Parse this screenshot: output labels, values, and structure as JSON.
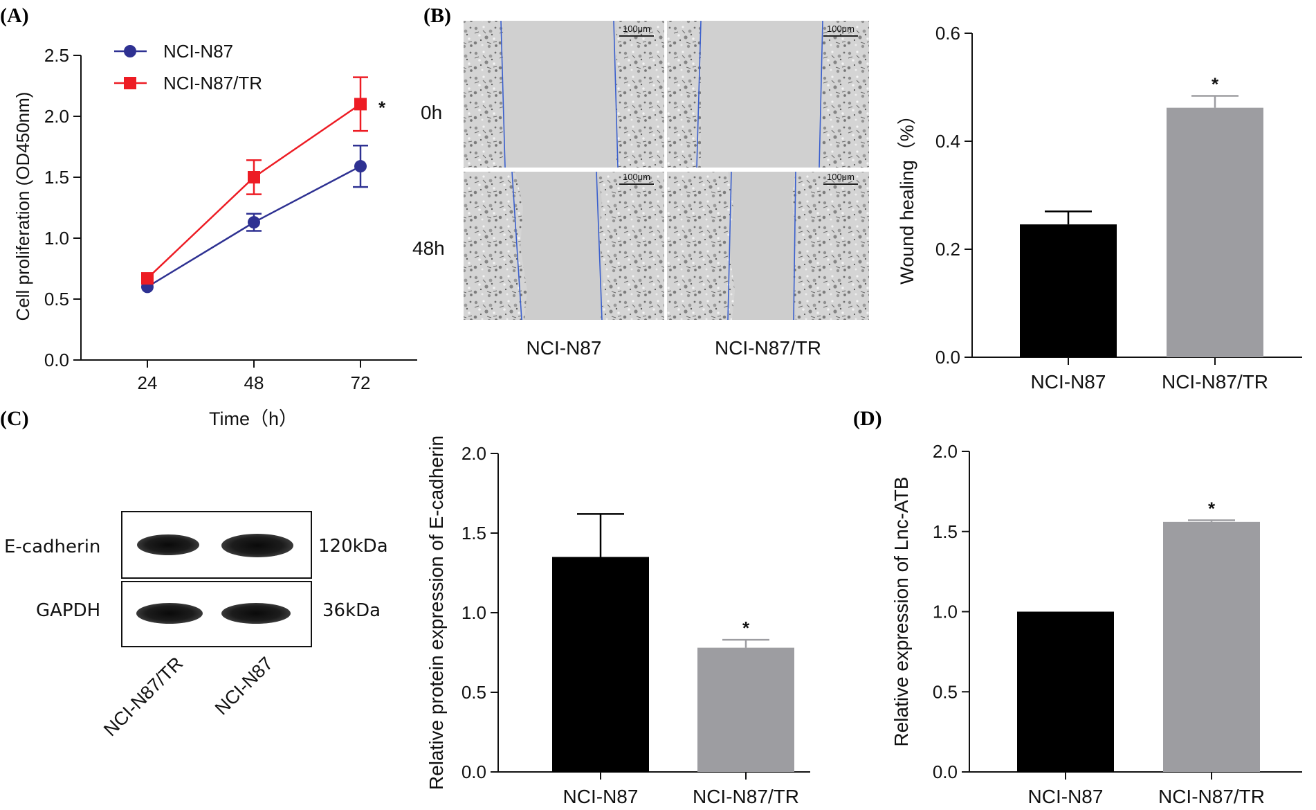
{
  "panels": {
    "A": "(A)",
    "B": "(B)",
    "C": "(C)",
    "D": "(D)"
  },
  "chart_data": [
    {
      "id": "A",
      "type": "line",
      "xlabel": "Time（h）",
      "ylabel": "Cell proliferation (OD450nm)",
      "x": [
        24,
        48,
        72
      ],
      "x_ticklabels": [
        "24",
        "48",
        "72"
      ],
      "ylim": [
        0,
        2.5
      ],
      "y_ticks": [
        0.0,
        0.5,
        1.0,
        1.5,
        2.0,
        2.5
      ],
      "y_ticklabels": [
        "0.0",
        "0.5",
        "1.0",
        "1.5",
        "2.0",
        "2.5"
      ],
      "legend_position": "top-left",
      "series": [
        {
          "name": "NCI-N87",
          "values": [
            0.6,
            1.13,
            1.59
          ],
          "errors": [
            0.0,
            0.07,
            0.17
          ],
          "color": "#2e3192",
          "marker": "circle"
        },
        {
          "name": "NCI-N87/TR",
          "values": [
            0.67,
            1.5,
            2.1
          ],
          "errors": [
            0.0,
            0.14,
            0.22
          ],
          "color": "#ed1c24",
          "marker": "square"
        }
      ],
      "annotations": [
        {
          "text": "*",
          "x": 72,
          "y": 2.1
        }
      ]
    },
    {
      "id": "B-bar",
      "type": "bar",
      "categories": [
        "NCI-N87",
        "NCI-N87/TR"
      ],
      "values": [
        0.246,
        0.462
      ],
      "errors": [
        0.024,
        0.022
      ],
      "colors": [
        "#000000",
        "#9d9da1"
      ],
      "ylabel": "Wound healing（%）",
      "ylim": [
        0,
        0.6
      ],
      "y_ticks": [
        0.0,
        0.2,
        0.4,
        0.6
      ],
      "y_ticklabels": [
        "0.0",
        "0.2",
        "0.4",
        "0.6"
      ],
      "sig": [
        "",
        "*"
      ]
    },
    {
      "id": "C-bar",
      "type": "bar",
      "categories": [
        "NCI-N87",
        "NCI-N87/TR"
      ],
      "values": [
        1.35,
        0.78
      ],
      "errors": [
        0.27,
        0.05
      ],
      "colors": [
        "#000000",
        "#9d9da1"
      ],
      "ylabel": "Relative protein expression of E-cadherin",
      "ylim": [
        0,
        2.0
      ],
      "y_ticks": [
        0.0,
        0.5,
        1.0,
        1.5,
        2.0
      ],
      "y_ticklabels": [
        "0.0",
        "0.5",
        "1.0",
        "1.5",
        "2.0"
      ],
      "sig": [
        "",
        "*"
      ]
    },
    {
      "id": "D",
      "type": "bar",
      "categories": [
        "NCI-N87",
        "NCI-N87/TR"
      ],
      "values": [
        1.0,
        1.56
      ],
      "errors": [
        0.0,
        0.01
      ],
      "colors": [
        "#000000",
        "#9d9da1"
      ],
      "ylabel": "Relative expression of Lnc-ATB",
      "ylim": [
        0,
        2.0
      ],
      "y_ticks": [
        0.0,
        0.5,
        1.0,
        1.5,
        2.0
      ],
      "y_ticklabels": [
        "0.0",
        "0.5",
        "1.0",
        "1.5",
        "2.0"
      ],
      "sig": [
        "",
        "*"
      ]
    }
  ],
  "wound_images": {
    "row_labels": [
      "0h",
      "48h"
    ],
    "col_labels": [
      "NCI-N87",
      "NCI-N87/TR"
    ],
    "scale_bar": "100μm"
  },
  "western_blot": {
    "bands": [
      {
        "protein": "E-cadherin",
        "size": "120kDa"
      },
      {
        "protein": "GAPDH",
        "size": "36kDa"
      }
    ],
    "lanes": [
      "NCI-N87/TR",
      "NCI-N87"
    ]
  }
}
